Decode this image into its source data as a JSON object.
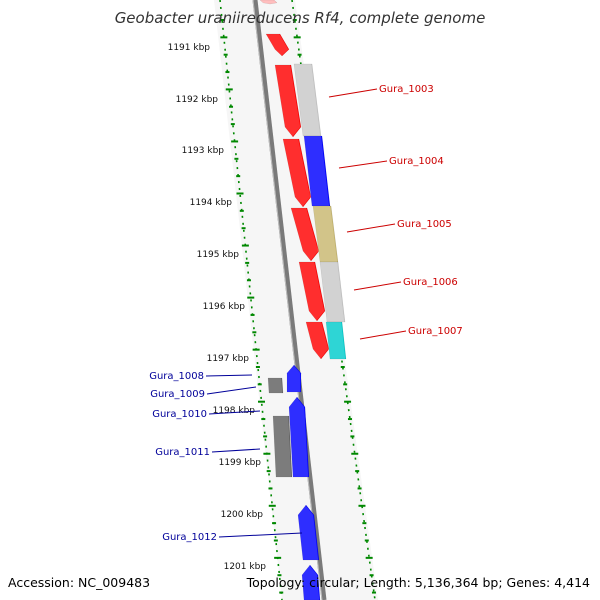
{
  "title": "Geobacter uraniireducens Rf4, complete genome",
  "footer": {
    "accession": "Accession: NC_009483",
    "summary": "Topology: circular; Length: 5,136,364 bp; Genes: 4,414"
  },
  "colors": {
    "backbone": "#7a7a7a",
    "tick": "#008800",
    "forward_label": "#cc0000",
    "reverse_label": "#000099",
    "red_gene": "#ff0000",
    "blue_gene": "#0000ff",
    "gray_gene": "#c8c8c8",
    "dark_gray_gene": "#606060",
    "olive_gene": "#c8b870",
    "cyan_gene": "#00cccc"
  },
  "kbp_markers": [
    "1191 kbp",
    "1192 kbp",
    "1193 kbp",
    "1194 kbp",
    "1195 kbp",
    "1196 kbp",
    "1197 kbp",
    "1198 kbp",
    "1199 kbp",
    "1200 kbp",
    "1201 kbp"
  ],
  "forward_labels": [
    "Gura_1003",
    "Gura_1004",
    "Gura_1005",
    "Gura_1006",
    "Gura_1007"
  ],
  "reverse_labels": [
    "Gura_1008",
    "Gura_1009",
    "Gura_1010",
    "Gura_1011",
    "Gura_1012"
  ]
}
